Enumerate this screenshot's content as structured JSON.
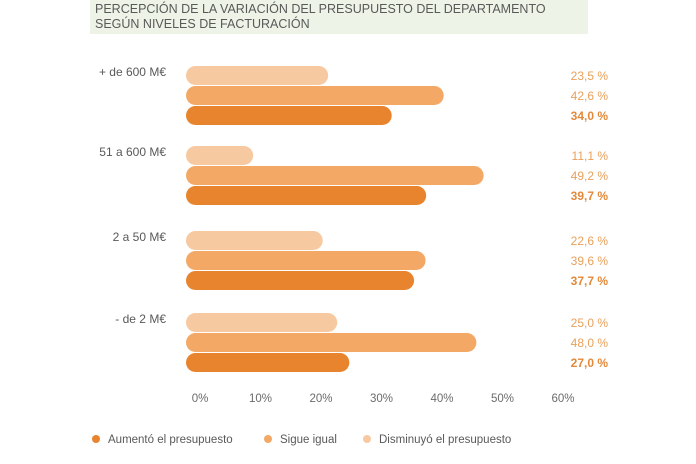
{
  "chart_data": {
    "type": "bar",
    "orientation": "horizontal",
    "title": "PERCEPCIÓN DE LA VARIACIÓN DEL PRESUPUESTO DEL DEPARTAMENTO SEGÚN NIVELES DE FACTURACIÓN",
    "categories": [
      "+ de 600 M€",
      "51 a 600 M€",
      "2 a 50 M€",
      "- de 2 M€"
    ],
    "series": [
      {
        "name": "Disminuyó el presupuesto",
        "color": "#f7c9a1",
        "values": [
          23.5,
          11.1,
          22.6,
          25.0
        ],
        "labels": [
          "23,5 %",
          "11,1 %",
          "22,6 %",
          "25,0 %"
        ]
      },
      {
        "name": "Sigue igual",
        "color": "#f3a965",
        "values": [
          42.6,
          49.2,
          39.6,
          48.0
        ],
        "labels": [
          "42,6 %",
          "49,2 %",
          "39,6 %",
          "48,0 %"
        ]
      },
      {
        "name": "Aumentó el presupuesto",
        "color": "#e8832e",
        "values": [
          34.0,
          39.7,
          37.7,
          27.0
        ],
        "labels": [
          "34,0 %",
          "39,7 %",
          "37,7 %",
          "27,0 %"
        ]
      }
    ],
    "xticks": [
      "0%",
      "10%",
      "20%",
      "30%",
      "40%",
      "50%",
      "60%"
    ],
    "xlim": [
      0,
      60
    ],
    "grid": false,
    "legend": {
      "position": "bottom",
      "items": [
        {
          "label": "Aumentó el presupuesto",
          "color": "#e8832e"
        },
        {
          "label": "Sigue igual",
          "color": "#f3a965"
        },
        {
          "label": "Disminuyó el presupuesto",
          "color": "#f7c9a1"
        }
      ]
    }
  }
}
